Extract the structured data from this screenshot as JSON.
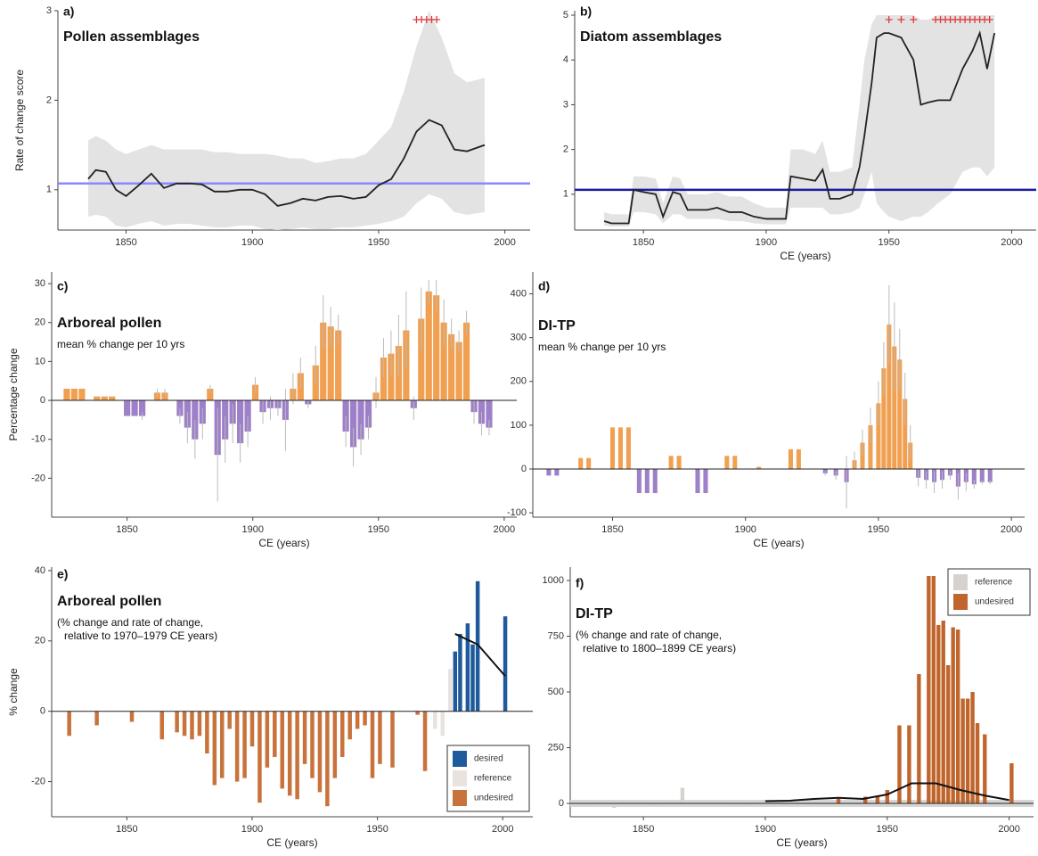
{
  "chart_data": [
    {
      "type": "line",
      "panel_label": "a)",
      "title": "Pollen assemblages",
      "ylabel": "Rate of change score",
      "x": [
        1835,
        1838,
        1842,
        1846,
        1850,
        1855,
        1860,
        1865,
        1870,
        1875,
        1880,
        1885,
        1890,
        1895,
        1900,
        1905,
        1910,
        1915,
        1920,
        1925,
        1930,
        1935,
        1940,
        1945,
        1950,
        1955,
        1960,
        1965,
        1970,
        1975,
        1980,
        1985,
        1992
      ],
      "values": [
        1.12,
        1.22,
        1.2,
        1.0,
        0.93,
        1.05,
        1.18,
        1.02,
        1.07,
        1.07,
        1.06,
        0.98,
        0.98,
        1.0,
        1.0,
        0.95,
        0.82,
        0.85,
        0.9,
        0.88,
        0.92,
        0.93,
        0.9,
        0.92,
        1.05,
        1.12,
        1.35,
        1.65,
        1.78,
        1.72,
        1.45,
        1.43,
        1.5
      ],
      "lower": [
        0.7,
        0.72,
        0.7,
        0.6,
        0.58,
        0.62,
        0.65,
        0.6,
        0.62,
        0.62,
        0.6,
        0.58,
        0.58,
        0.6,
        0.6,
        0.56,
        0.55,
        0.56,
        0.58,
        0.56,
        0.56,
        0.58,
        0.58,
        0.6,
        0.62,
        0.65,
        0.7,
        0.85,
        0.95,
        0.9,
        0.75,
        0.72,
        0.75
      ],
      "upper": [
        1.55,
        1.6,
        1.55,
        1.45,
        1.4,
        1.45,
        1.5,
        1.45,
        1.45,
        1.45,
        1.45,
        1.42,
        1.42,
        1.4,
        1.4,
        1.4,
        1.38,
        1.35,
        1.35,
        1.3,
        1.32,
        1.35,
        1.35,
        1.4,
        1.55,
        1.7,
        2.1,
        2.6,
        3.0,
        2.7,
        2.3,
        2.2,
        2.25
      ],
      "color": "#222222",
      "band_color": "#e3e3e3",
      "reference_line": 1.07,
      "reference_color": "#8888ff",
      "significant_x": [
        1965,
        1967,
        1969,
        1971,
        1973
      ],
      "significant_color": "#e03a3a",
      "xlim": [
        1823,
        2010
      ],
      "ylim": [
        0.55,
        3
      ],
      "xticks": [
        1850,
        1900,
        1950,
        2000
      ],
      "yticks": [
        1,
        2,
        3
      ]
    },
    {
      "type": "line",
      "panel_label": "b)",
      "title": "Diatom assemblages",
      "xlabel": "CE (years)",
      "x": [
        1834,
        1837,
        1840,
        1844,
        1846,
        1850,
        1855,
        1858,
        1862,
        1865,
        1868,
        1872,
        1876,
        1880,
        1885,
        1890,
        1895,
        1900,
        1905,
        1908,
        1910,
        1915,
        1920,
        1923,
        1926,
        1930,
        1935,
        1938,
        1940,
        1943,
        1945,
        1948,
        1950,
        1955,
        1960,
        1963,
        1966,
        1970,
        1975,
        1980,
        1984,
        1987,
        1990,
        1993
      ],
      "values": [
        0.4,
        0.35,
        0.35,
        0.35,
        1.1,
        1.05,
        1.0,
        0.5,
        1.05,
        1.0,
        0.65,
        0.65,
        0.65,
        0.7,
        0.6,
        0.6,
        0.5,
        0.45,
        0.45,
        0.45,
        1.4,
        1.35,
        1.3,
        1.55,
        0.9,
        0.9,
        1.0,
        1.6,
        2.3,
        3.5,
        4.5,
        4.6,
        4.6,
        4.5,
        4.0,
        3.0,
        3.05,
        3.1,
        3.1,
        3.8,
        4.2,
        4.6,
        3.8,
        4.6
      ],
      "lower": [
        0.3,
        0.28,
        0.28,
        0.28,
        0.6,
        0.6,
        0.55,
        0.35,
        0.55,
        0.55,
        0.45,
        0.45,
        0.45,
        0.45,
        0.4,
        0.4,
        0.35,
        0.33,
        0.33,
        0.33,
        0.7,
        0.7,
        0.7,
        0.7,
        0.55,
        0.55,
        0.6,
        0.7,
        1.0,
        1.5,
        0.8,
        0.6,
        0.5,
        0.4,
        0.5,
        0.5,
        0.6,
        0.8,
        1.0,
        1.5,
        1.6,
        1.6,
        1.4,
        1.6
      ],
      "upper": [
        0.6,
        0.55,
        0.55,
        0.55,
        1.4,
        1.4,
        1.35,
        0.8,
        1.4,
        1.35,
        1.0,
        1.0,
        1.0,
        1.05,
        0.95,
        0.95,
        0.8,
        0.7,
        0.7,
        0.7,
        2.0,
        2.0,
        1.9,
        2.2,
        1.5,
        1.5,
        1.6,
        3.0,
        4.0,
        4.8,
        5.0,
        5.0,
        5.0,
        5.0,
        5.0,
        4.9,
        4.9,
        5.0,
        5.0,
        5.0,
        5.0,
        5.0,
        5.0,
        5.0
      ],
      "color": "#222222",
      "band_color": "#e3e3e3",
      "reference_line": 1.1,
      "reference_color": "#1c1ca0",
      "significant_x": [
        1950,
        1955,
        1960,
        1969,
        1971,
        1973,
        1975,
        1977,
        1979,
        1981,
        1983,
        1985,
        1987,
        1989,
        1991
      ],
      "significant_color": "#e03a3a",
      "xlim": [
        1822,
        2010
      ],
      "ylim": [
        0.2,
        5.1
      ],
      "xticks": [
        1850,
        1900,
        1950,
        2000
      ],
      "yticks": [
        1,
        2,
        3,
        4,
        5
      ]
    },
    {
      "type": "bar",
      "panel_label": "c)",
      "title": "Arboreal pollen",
      "subtitle": [
        "mean % change per 10 yrs"
      ],
      "ylabel": "Percentage change",
      "xlabel": "CE (years)",
      "x": [
        1826,
        1829,
        1832,
        1838,
        1841,
        1844,
        1850,
        1853,
        1856,
        1862,
        1865,
        1871,
        1874,
        1877,
        1880,
        1883,
        1886,
        1889,
        1892,
        1895,
        1898,
        1901,
        1904,
        1907,
        1910,
        1913,
        1916,
        1919,
        1922,
        1925,
        1928,
        1931,
        1934,
        1937,
        1940,
        1943,
        1946,
        1949,
        1952,
        1955,
        1958,
        1961,
        1964,
        1967,
        1970,
        1973,
        1976,
        1979,
        1982,
        1985,
        1988,
        1991,
        1994
      ],
      "values": [
        3,
        3,
        3,
        1,
        1,
        1,
        -4,
        -4,
        -4,
        2,
        2,
        -4,
        -7,
        -10,
        -6,
        3,
        -14,
        -10,
        -6,
        -11,
        -8,
        4,
        -3,
        -2,
        -2,
        -5,
        3,
        7,
        -1,
        9,
        20,
        19,
        18,
        -8,
        -12,
        -10,
        -7,
        2,
        11,
        12,
        14,
        18,
        -2,
        21,
        28,
        27,
        20,
        17,
        15,
        20,
        -3,
        -6,
        -7
      ],
      "errors": [
        0,
        0,
        0,
        0,
        0,
        0,
        0,
        0,
        1,
        1,
        1,
        2,
        4,
        5,
        4,
        1,
        12,
        6,
        5,
        5,
        4,
        2,
        3,
        3,
        2,
        8,
        4,
        4,
        1,
        5,
        7,
        5,
        4,
        4,
        5,
        4,
        3,
        4,
        5,
        6,
        8,
        10,
        3,
        8,
        3,
        4,
        6,
        4,
        3,
        3,
        3,
        3,
        2
      ],
      "positive_color": "#f0a050",
      "negative_color": "#9d80c8",
      "error_color": "#bbbbbb",
      "xlim": [
        1820,
        2005
      ],
      "ylim": [
        -30,
        33
      ],
      "xticks": [
        1850,
        1900,
        1950,
        2000
      ],
      "yticks": [
        -20,
        -10,
        0,
        10,
        20,
        30
      ]
    },
    {
      "type": "bar",
      "panel_label": "d)",
      "title": "DI-TP",
      "subtitle": [
        "mean % change per 10 yrs"
      ],
      "xlabel": "CE (years)",
      "x": [
        1826,
        1829,
        1838,
        1841,
        1850,
        1853,
        1856,
        1860,
        1863,
        1866,
        1872,
        1875,
        1882,
        1885,
        1893,
        1896,
        1905,
        1917,
        1920,
        1930,
        1934,
        1938,
        1941,
        1944,
        1947,
        1950,
        1952,
        1954,
        1956,
        1958,
        1960,
        1962,
        1965,
        1968,
        1971,
        1974,
        1977,
        1980,
        1983,
        1986,
        1989,
        1992
      ],
      "values": [
        -15,
        -15,
        25,
        25,
        95,
        95,
        95,
        -55,
        -55,
        -55,
        30,
        30,
        -55,
        -55,
        30,
        30,
        5,
        45,
        45,
        -10,
        -15,
        -30,
        20,
        60,
        100,
        150,
        230,
        330,
        280,
        250,
        160,
        60,
        -20,
        -25,
        -30,
        -25,
        -15,
        -40,
        -30,
        -35,
        -30,
        -30
      ],
      "errors": [
        0,
        0,
        0,
        0,
        0,
        0,
        0,
        0,
        0,
        0,
        0,
        0,
        0,
        0,
        0,
        0,
        0,
        0,
        0,
        5,
        10,
        60,
        20,
        30,
        40,
        50,
        60,
        90,
        100,
        70,
        60,
        40,
        20,
        20,
        25,
        20,
        10,
        30,
        20,
        10,
        5,
        5
      ],
      "positive_color": "#f0a050",
      "negative_color": "#9d80c8",
      "error_color": "#bbbbbb",
      "xlim": [
        1820,
        2005
      ],
      "ylim": [
        -110,
        450
      ],
      "xticks": [
        1850,
        1900,
        1950,
        2000
      ],
      "yticks": [
        -100,
        0,
        100,
        200,
        300,
        400
      ]
    },
    {
      "type": "bar",
      "panel_label": "e)",
      "title": "Arboreal pollen",
      "subtitle": [
        "(% change and rate of change,",
        "relative to 1970–1979 CE years)"
      ],
      "ylabel": "% change",
      "xlabel": "CE (years)",
      "series": [
        {
          "name": "desired",
          "color": "#1f5b9c",
          "x": [
            1981,
            1983,
            1986,
            1988,
            1990,
            2001
          ],
          "values": [
            17,
            22,
            25,
            19,
            37,
            27
          ]
        },
        {
          "name": "reference",
          "color": "#e9e2de",
          "x": [
            1973,
            1976,
            1979
          ],
          "values": [
            -5,
            -7,
            12
          ]
        },
        {
          "name": "undesired",
          "color": "#c8733c",
          "x": [
            1827,
            1838,
            1852,
            1864,
            1870,
            1873,
            1876,
            1879,
            1882,
            1885,
            1888,
            1891,
            1894,
            1897,
            1900,
            1903,
            1906,
            1909,
            1912,
            1915,
            1918,
            1921,
            1924,
            1927,
            1930,
            1933,
            1936,
            1939,
            1942,
            1945,
            1948,
            1951,
            1956,
            1966,
            1969
          ],
          "values": [
            -7,
            -4,
            -3,
            -8,
            -6,
            -7,
            -8,
            -7,
            -12,
            -21,
            -19,
            -5,
            -20,
            -19,
            -10,
            -26,
            -16,
            -13,
            -22,
            -24,
            -25,
            -15,
            -19,
            -23,
            -27,
            -19,
            -13,
            -8,
            -5,
            -4,
            -19,
            -15,
            -16,
            -1,
            -17
          ]
        }
      ],
      "trend": {
        "color": "#111111",
        "x": [
          1981,
          1990,
          2001
        ],
        "values": [
          22,
          19,
          10
        ]
      },
      "legend_position": "bottom-right",
      "xlim": [
        1820,
        2012
      ],
      "ylim": [
        -30,
        41
      ],
      "xticks": [
        1850,
        1900,
        1950,
        2000
      ],
      "yticks": [
        -20,
        0,
        20,
        40
      ]
    },
    {
      "type": "bar",
      "panel_label": "f)",
      "title": "DI-TP",
      "subtitle": [
        "(% change and rate of change,",
        "relative to 1800–1899 CE years)"
      ],
      "xlabel": "CE (years)",
      "series": [
        {
          "name": "reference",
          "color": "#d8d2ce",
          "x": [
            1826,
            1838,
            1855,
            1866,
            1888,
            1894
          ],
          "values": [
            -10,
            -20,
            -10,
            70,
            -10,
            -10
          ]
        },
        {
          "name": "undesired",
          "color": "#c0652c",
          "x": [
            1930,
            1941,
            1946,
            1950,
            1955,
            1959,
            1963,
            1967,
            1969,
            1971,
            1973,
            1975,
            1977,
            1979,
            1981,
            1983,
            1985,
            1987,
            1990,
            2001
          ],
          "values": [
            20,
            30,
            30,
            60,
            350,
            350,
            580,
            1020,
            1020,
            800,
            820,
            620,
            790,
            780,
            470,
            470,
            500,
            360,
            310,
            180
          ]
        }
      ],
      "trend": {
        "color": "#111111",
        "x": [
          1900,
          1910,
          1920,
          1930,
          1940,
          1950,
          1960,
          1970,
          1980,
          1990,
          2000
        ],
        "values": [
          10,
          12,
          20,
          25,
          20,
          40,
          90,
          90,
          60,
          35,
          15
        ]
      },
      "legend_position": "top-right",
      "xlim": [
        1820,
        2010
      ],
      "ylim": [
        -60,
        1060
      ],
      "xticks": [
        1850,
        1900,
        1950,
        2000
      ],
      "yticks": [
        0,
        250,
        500,
        750,
        1000
      ]
    }
  ]
}
